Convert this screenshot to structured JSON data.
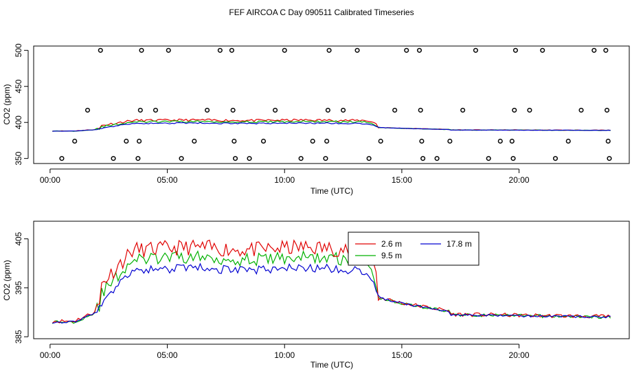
{
  "figure": {
    "title": "FEF AIRCOA C  Day 090511  Calibrated Timeseries"
  },
  "colors": {
    "series_2_6m": "#e00000",
    "series_9_5m": "#00b000",
    "series_17_8m": "#0000d0",
    "axis": "#000000"
  },
  "chart_data": [
    {
      "type": "scatter+line",
      "xlabel": "Time (UTC)",
      "ylabel": "CO2 (ppm)",
      "xlim": [
        -0.7,
        24.7
      ],
      "ylim": [
        343,
        506
      ],
      "xticks": [
        0,
        5,
        10,
        15,
        20
      ],
      "xtick_labels": [
        "00:00",
        "05:00",
        "10:00",
        "15:00",
        "20:00"
      ],
      "yticks": [
        350,
        400,
        450,
        500
      ],
      "ytick_labels": [
        "350",
        "400",
        "450",
        "500"
      ],
      "scatter_points": [
        {
          "x": 0.5,
          "y": 350
        },
        {
          "x": 1.05,
          "y": 374
        },
        {
          "x": 1.6,
          "y": 417
        },
        {
          "x": 2.15,
          "y": 500
        },
        {
          "x": 2.7,
          "y": 350
        },
        {
          "x": 3.25,
          "y": 374
        },
        {
          "x": 3.8,
          "y": 374
        },
        {
          "x": 3.75,
          "y": 350
        },
        {
          "x": 3.85,
          "y": 417
        },
        {
          "x": 3.9,
          "y": 500
        },
        {
          "x": 4.5,
          "y": 417
        },
        {
          "x": 5.05,
          "y": 500
        },
        {
          "x": 5.6,
          "y": 350
        },
        {
          "x": 6.15,
          "y": 374
        },
        {
          "x": 6.7,
          "y": 417
        },
        {
          "x": 7.25,
          "y": 500
        },
        {
          "x": 7.8,
          "y": 417
        },
        {
          "x": 7.75,
          "y": 500
        },
        {
          "x": 7.85,
          "y": 374
        },
        {
          "x": 7.9,
          "y": 350
        },
        {
          "x": 8.5,
          "y": 350
        },
        {
          "x": 9.1,
          "y": 374
        },
        {
          "x": 9.6,
          "y": 417
        },
        {
          "x": 10.0,
          "y": 500
        },
        {
          "x": 10.7,
          "y": 350
        },
        {
          "x": 11.2,
          "y": 374
        },
        {
          "x": 11.8,
          "y": 374
        },
        {
          "x": 11.75,
          "y": 350
        },
        {
          "x": 11.85,
          "y": 417
        },
        {
          "x": 11.9,
          "y": 500
        },
        {
          "x": 12.5,
          "y": 417
        },
        {
          "x": 13.1,
          "y": 500
        },
        {
          "x": 13.6,
          "y": 350
        },
        {
          "x": 14.1,
          "y": 374
        },
        {
          "x": 14.7,
          "y": 417
        },
        {
          "x": 15.2,
          "y": 500
        },
        {
          "x": 15.8,
          "y": 417
        },
        {
          "x": 15.75,
          "y": 500
        },
        {
          "x": 15.85,
          "y": 374
        },
        {
          "x": 15.9,
          "y": 350
        },
        {
          "x": 16.5,
          "y": 350
        },
        {
          "x": 17.05,
          "y": 374
        },
        {
          "x": 17.6,
          "y": 417
        },
        {
          "x": 18.15,
          "y": 500
        },
        {
          "x": 18.7,
          "y": 350
        },
        {
          "x": 19.2,
          "y": 374
        },
        {
          "x": 19.7,
          "y": 374
        },
        {
          "x": 19.75,
          "y": 350
        },
        {
          "x": 19.8,
          "y": 417
        },
        {
          "x": 19.85,
          "y": 500
        },
        {
          "x": 20.45,
          "y": 417
        },
        {
          "x": 21.0,
          "y": 500
        },
        {
          "x": 21.55,
          "y": 350
        },
        {
          "x": 22.1,
          "y": 374
        },
        {
          "x": 22.65,
          "y": 417
        },
        {
          "x": 23.2,
          "y": 500
        },
        {
          "x": 23.7,
          "y": 500
        },
        {
          "x": 23.75,
          "y": 417
        },
        {
          "x": 23.8,
          "y": 374
        },
        {
          "x": 23.85,
          "y": 350
        }
      ]
    },
    {
      "type": "line",
      "xlabel": "Time (UTC)",
      "ylabel": "CO2 (ppm)",
      "xlim": [
        -0.7,
        24.7
      ],
      "ylim": [
        384.6,
        408.6
      ],
      "xticks": [
        0,
        5,
        10,
        15,
        20
      ],
      "xtick_labels": [
        "00:00",
        "05:00",
        "10:00",
        "15:00",
        "20:00"
      ],
      "yticks": [
        385,
        395,
        405
      ],
      "ytick_labels": [
        "385",
        "395",
        "405"
      ],
      "legend": {
        "placement": "top-right",
        "entries": [
          "2.6 m",
          "17.8 m",
          "9.5 m"
        ]
      }
    }
  ]
}
